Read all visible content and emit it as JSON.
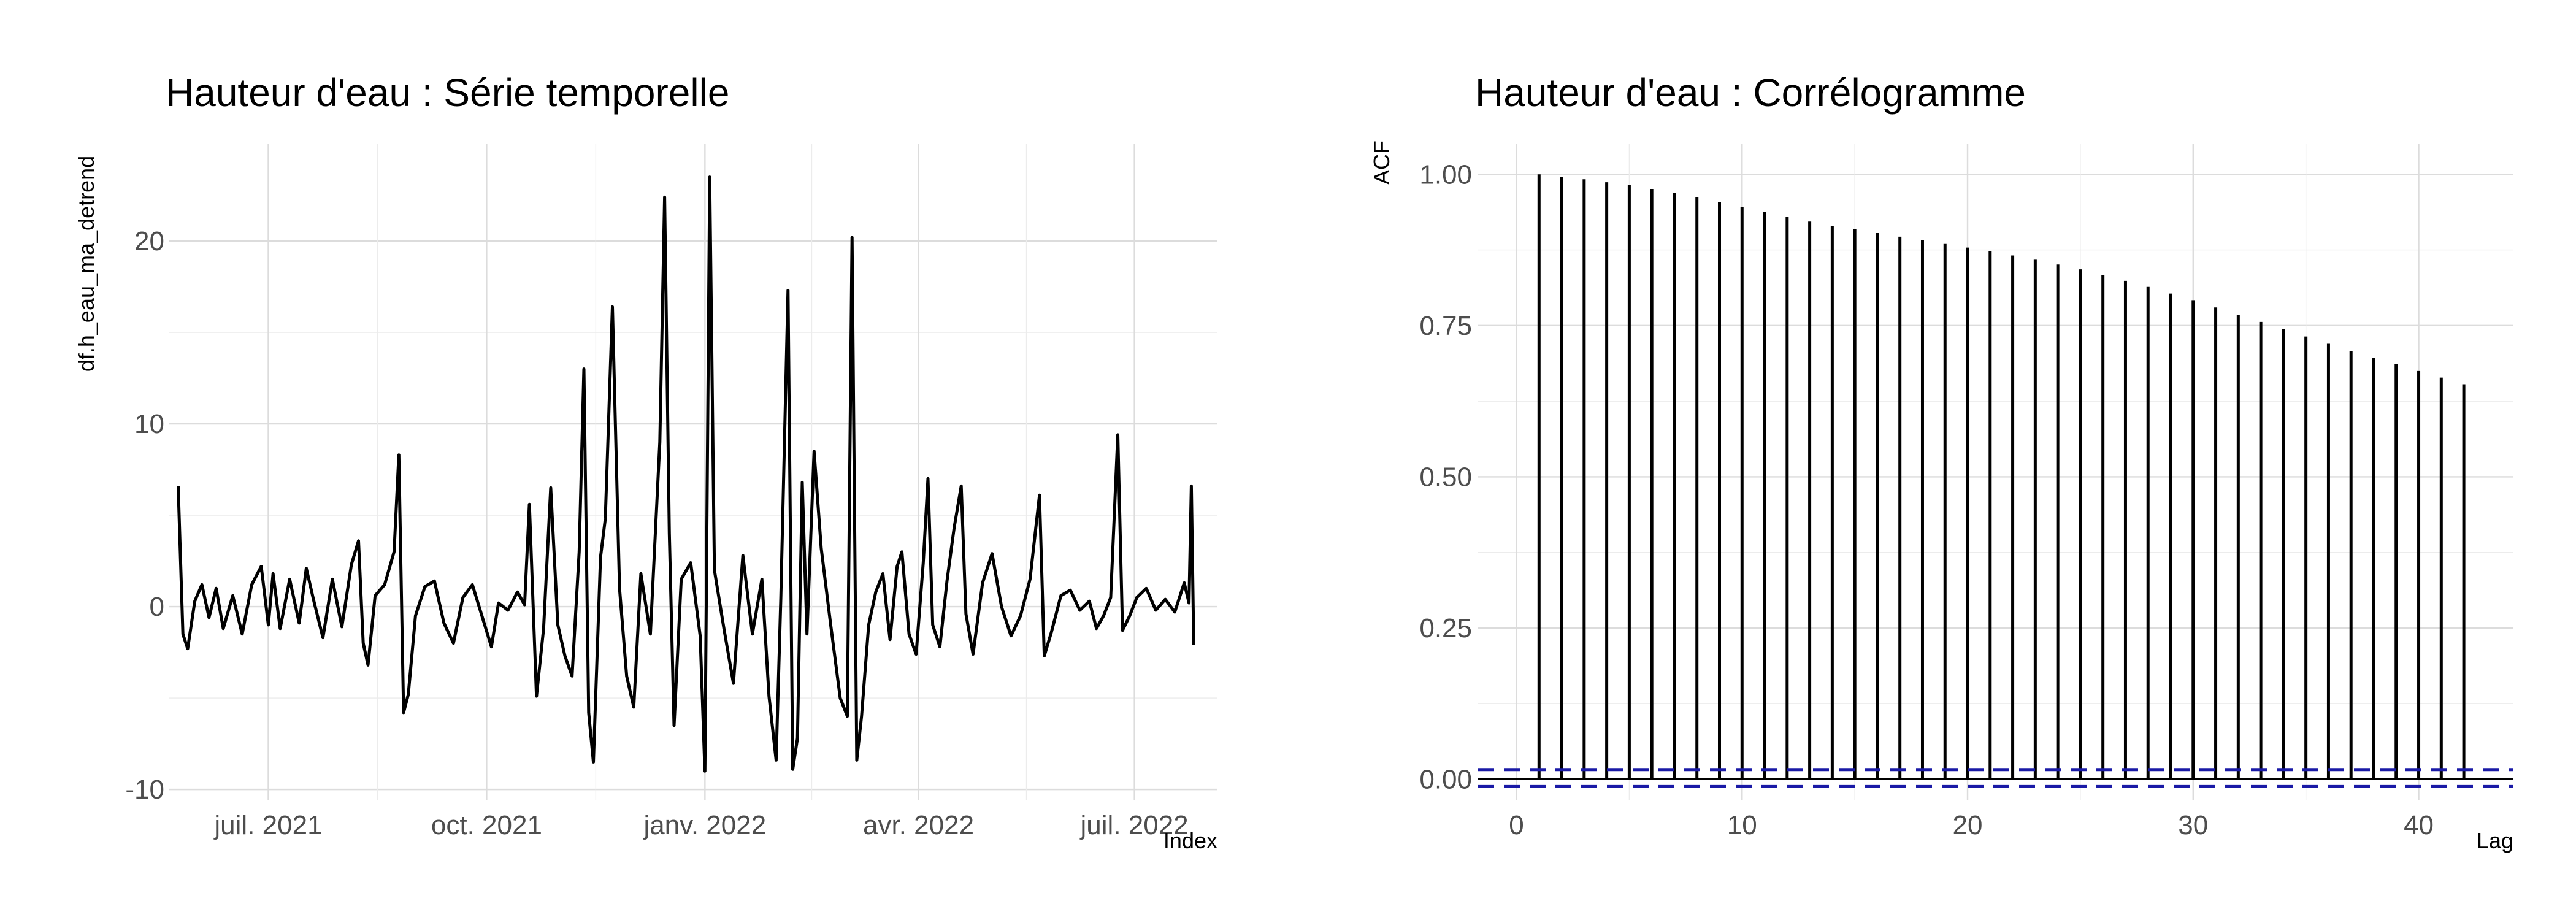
{
  "chart_data": [
    {
      "type": "line",
      "title": "Hauteur d'eau : Série temporelle",
      "xlabel": "Index",
      "ylabel": "df.h_eau_ma_detrend",
      "x_range": [
        "2021-05-20",
        "2022-08-05"
      ],
      "ylim": [
        -10.6,
        25.3
      ],
      "x_ticks": [
        {
          "date": "2021-07-01",
          "label": "juil. 2021"
        },
        {
          "date": "2021-10-01",
          "label": "oct. 2021"
        },
        {
          "date": "2022-01-01",
          "label": "janv. 2022"
        },
        {
          "date": "2022-04-01",
          "label": "avr. 2022"
        },
        {
          "date": "2022-07-01",
          "label": "juil. 2022"
        }
      ],
      "y_ticks": [
        -10,
        0,
        10,
        20
      ],
      "grid": true,
      "color": "#000000",
      "series": [
        {
          "points": [
            [
              "2021-05-24",
              6.6
            ],
            [
              "2021-05-26",
              -1.5
            ],
            [
              "2021-05-28",
              -2.3
            ],
            [
              "2021-05-31",
              0.3
            ],
            [
              "2021-06-03",
              1.2
            ],
            [
              "2021-06-06",
              -0.6
            ],
            [
              "2021-06-09",
              1.0
            ],
            [
              "2021-06-12",
              -1.2
            ],
            [
              "2021-06-16",
              0.6
            ],
            [
              "2021-06-20",
              -1.5
            ],
            [
              "2021-06-24",
              1.2
            ],
            [
              "2021-06-28",
              2.2
            ],
            [
              "2021-07-01",
              -1.0
            ],
            [
              "2021-07-03",
              1.8
            ],
            [
              "2021-07-06",
              -1.2
            ],
            [
              "2021-07-10",
              1.5
            ],
            [
              "2021-07-14",
              -0.9
            ],
            [
              "2021-07-17",
              2.1
            ],
            [
              "2021-07-20",
              0.4
            ],
            [
              "2021-07-24",
              -1.7
            ],
            [
              "2021-07-28",
              1.5
            ],
            [
              "2021-08-01",
              -1.1
            ],
            [
              "2021-08-05",
              2.3
            ],
            [
              "2021-08-08",
              3.6
            ],
            [
              "2021-08-10",
              -2.0
            ],
            [
              "2021-08-12",
              -3.2
            ],
            [
              "2021-08-15",
              0.6
            ],
            [
              "2021-08-19",
              1.2
            ],
            [
              "2021-08-23",
              3.0
            ],
            [
              "2021-08-25",
              8.3
            ],
            [
              "2021-08-27",
              -5.8
            ],
            [
              "2021-08-29",
              -4.8
            ],
            [
              "2021-09-01",
              -0.5
            ],
            [
              "2021-09-05",
              1.1
            ],
            [
              "2021-09-09",
              1.4
            ],
            [
              "2021-09-13",
              -0.9
            ],
            [
              "2021-09-17",
              -2.0
            ],
            [
              "2021-09-21",
              0.5
            ],
            [
              "2021-09-25",
              1.2
            ],
            [
              "2021-09-29",
              -0.5
            ],
            [
              "2021-10-03",
              -2.2
            ],
            [
              "2021-10-06",
              0.2
            ],
            [
              "2021-10-10",
              -0.2
            ],
            [
              "2021-10-14",
              0.8
            ],
            [
              "2021-10-17",
              0.1
            ],
            [
              "2021-10-19",
              5.6
            ],
            [
              "2021-10-22",
              -4.9
            ],
            [
              "2021-10-25",
              -1.2
            ],
            [
              "2021-10-28",
              6.5
            ],
            [
              "2021-10-31",
              -1.0
            ],
            [
              "2021-11-03",
              -2.7
            ],
            [
              "2021-11-06",
              -3.8
            ],
            [
              "2021-11-09",
              3.0
            ],
            [
              "2021-11-11",
              13.0
            ],
            [
              "2021-11-13",
              -5.8
            ],
            [
              "2021-11-15",
              -8.5
            ],
            [
              "2021-11-18",
              2.7
            ],
            [
              "2021-11-20",
              4.8
            ],
            [
              "2021-11-23",
              16.4
            ],
            [
              "2021-11-26",
              1.0
            ],
            [
              "2021-11-29",
              -3.8
            ],
            [
              "2021-12-02",
              -5.5
            ],
            [
              "2021-12-05",
              1.8
            ],
            [
              "2021-12-09",
              -1.5
            ],
            [
              "2021-12-13",
              9.0
            ],
            [
              "2021-12-15",
              22.4
            ],
            [
              "2021-12-17",
              4.0
            ],
            [
              "2021-12-19",
              -6.5
            ],
            [
              "2021-12-22",
              1.5
            ],
            [
              "2021-12-26",
              2.4
            ],
            [
              "2021-12-30",
              -1.6
            ],
            [
              "2022-01-01",
              -9.0
            ],
            [
              "2022-01-03",
              23.5
            ],
            [
              "2022-01-05",
              2.0
            ],
            [
              "2022-01-09",
              -1.2
            ],
            [
              "2022-01-13",
              -4.2
            ],
            [
              "2022-01-17",
              2.8
            ],
            [
              "2022-01-21",
              -1.5
            ],
            [
              "2022-01-25",
              1.5
            ],
            [
              "2022-01-28",
              -4.9
            ],
            [
              "2022-01-31",
              -8.4
            ],
            [
              "2022-02-02",
              0.5
            ],
            [
              "2022-02-05",
              17.3
            ],
            [
              "2022-02-07",
              -8.9
            ],
            [
              "2022-02-09",
              -7.2
            ],
            [
              "2022-02-11",
              6.8
            ],
            [
              "2022-02-13",
              -1.5
            ],
            [
              "2022-02-16",
              8.5
            ],
            [
              "2022-02-19",
              3.2
            ],
            [
              "2022-02-23",
              -1.0
            ],
            [
              "2022-02-27",
              -5.0
            ],
            [
              "2022-03-02",
              -6.0
            ],
            [
              "2022-03-04",
              20.2
            ],
            [
              "2022-03-06",
              -8.4
            ],
            [
              "2022-03-08",
              -6.0
            ],
            [
              "2022-03-11",
              -1.0
            ],
            [
              "2022-03-14",
              0.8
            ],
            [
              "2022-03-17",
              1.8
            ],
            [
              "2022-03-20",
              -1.8
            ],
            [
              "2022-03-23",
              2.2
            ],
            [
              "2022-03-25",
              3.0
            ],
            [
              "2022-03-28",
              -1.5
            ],
            [
              "2022-03-31",
              -2.6
            ],
            [
              "2022-04-03",
              2.4
            ],
            [
              "2022-04-05",
              7.0
            ],
            [
              "2022-04-07",
              -1.0
            ],
            [
              "2022-04-10",
              -2.2
            ],
            [
              "2022-04-13",
              1.4
            ],
            [
              "2022-04-16",
              4.3
            ],
            [
              "2022-04-19",
              6.6
            ],
            [
              "2022-04-21",
              -0.4
            ],
            [
              "2022-04-24",
              -2.6
            ],
            [
              "2022-04-28",
              1.3
            ],
            [
              "2022-05-02",
              2.9
            ],
            [
              "2022-05-06",
              0.0
            ],
            [
              "2022-05-10",
              -1.6
            ],
            [
              "2022-05-14",
              -0.5
            ],
            [
              "2022-05-18",
              1.5
            ],
            [
              "2022-05-22",
              6.1
            ],
            [
              "2022-05-24",
              -2.7
            ],
            [
              "2022-05-27",
              -1.4
            ],
            [
              "2022-05-31",
              0.6
            ],
            [
              "2022-06-04",
              0.9
            ],
            [
              "2022-06-08",
              -0.2
            ],
            [
              "2022-06-12",
              0.3
            ],
            [
              "2022-06-15",
              -1.2
            ],
            [
              "2022-06-18",
              -0.5
            ],
            [
              "2022-06-21",
              0.5
            ],
            [
              "2022-06-24",
              9.4
            ],
            [
              "2022-06-26",
              -1.3
            ],
            [
              "2022-06-29",
              -0.5
            ],
            [
              "2022-07-02",
              0.5
            ],
            [
              "2022-07-06",
              1.0
            ],
            [
              "2022-07-10",
              -0.2
            ],
            [
              "2022-07-14",
              0.4
            ],
            [
              "2022-07-18",
              -0.3
            ],
            [
              "2022-07-22",
              1.3
            ],
            [
              "2022-07-24",
              0.2
            ],
            [
              "2022-07-25",
              6.6
            ],
            [
              "2022-07-26",
              -2.1
            ]
          ]
        }
      ]
    },
    {
      "type": "bar",
      "title": "Hauteur d'eau : Corrélogramme",
      "xlabel": "Lag",
      "ylabel": "ACF",
      "xlim": [
        -1.7,
        44.2
      ],
      "ylim": [
        -0.035,
        1.05
      ],
      "x_ticks": [
        0,
        10,
        20,
        30,
        40
      ],
      "y_ticks": [
        0.0,
        0.25,
        0.5,
        0.75,
        1.0
      ],
      "y_tick_labels": [
        "0.00",
        "0.25",
        "0.50",
        "0.75",
        "1.00"
      ],
      "grid": true,
      "color": "#000000",
      "lags": [
        1,
        2,
        3,
        4,
        5,
        6,
        7,
        8,
        9,
        10,
        11,
        12,
        13,
        14,
        15,
        16,
        17,
        18,
        19,
        20,
        21,
        22,
        23,
        24,
        25,
        26,
        27,
        28,
        29,
        30,
        31,
        32,
        33,
        34,
        35,
        36,
        37,
        38,
        39,
        40,
        41,
        42
      ],
      "values": [
        1.0,
        0.996,
        0.992,
        0.987,
        0.982,
        0.976,
        0.969,
        0.962,
        0.954,
        0.946,
        0.938,
        0.93,
        0.922,
        0.915,
        0.909,
        0.903,
        0.897,
        0.891,
        0.885,
        0.879,
        0.873,
        0.866,
        0.859,
        0.851,
        0.843,
        0.834,
        0.824,
        0.814,
        0.803,
        0.792,
        0.78,
        0.768,
        0.756,
        0.744,
        0.732,
        0.72,
        0.708,
        0.697,
        0.686,
        0.675,
        0.664,
        0.653
      ],
      "confidence_bounds": [
        -0.012,
        0.016
      ],
      "confidence_color": "#1a1aa6"
    }
  ]
}
